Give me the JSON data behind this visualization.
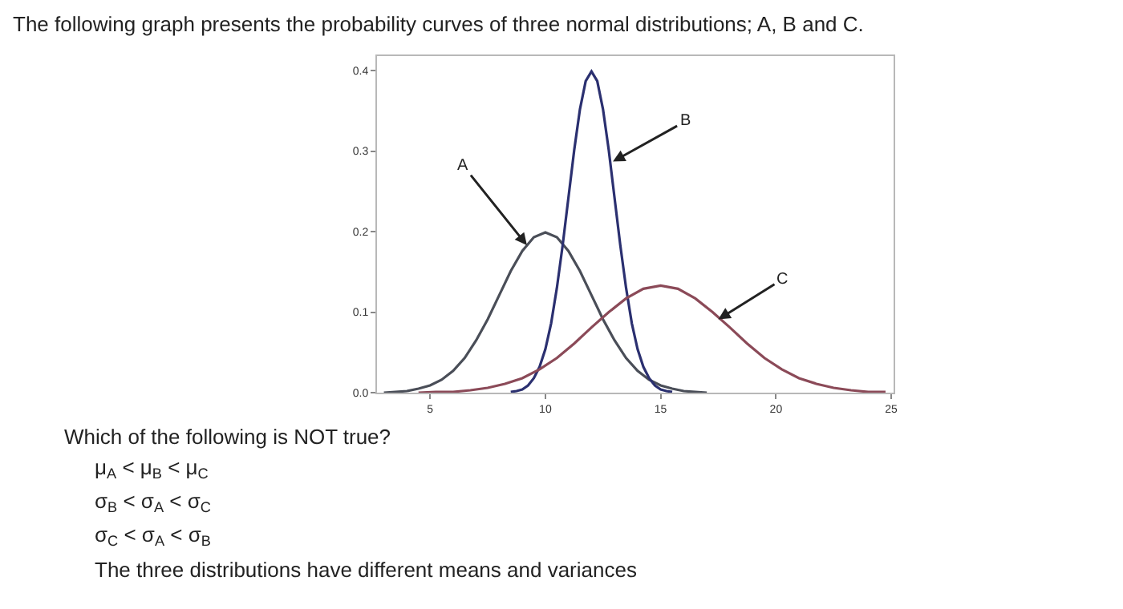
{
  "chart_data": {
    "type": "line",
    "title": "The following graph presents the probability curves of three normal distributions; A, B and C.",
    "series": [
      {
        "color": "#4a4e58",
        "x": [
          3,
          3.5,
          4,
          4.5,
          5,
          5.5,
          6,
          6.5,
          7,
          7.5,
          8,
          8.5,
          9,
          9.5,
          10,
          10.5,
          11,
          11.5,
          12,
          12.5,
          13,
          13.5,
          14,
          14.5,
          15,
          15.5,
          16,
          16.5,
          17
        ],
        "values": [
          0.0,
          0.001,
          0.002,
          0.005,
          0.009,
          0.016,
          0.027,
          0.043,
          0.065,
          0.091,
          0.121,
          0.151,
          0.176,
          0.193,
          0.199,
          0.193,
          0.176,
          0.151,
          0.121,
          0.091,
          0.065,
          0.043,
          0.027,
          0.016,
          0.009,
          0.005,
          0.002,
          0.001,
          0.0
        ]
      },
      {
        "color": "#2b3070",
        "x": [
          8.5,
          8.75,
          9,
          9.25,
          9.5,
          9.75,
          10,
          10.25,
          10.5,
          10.75,
          11,
          11.25,
          11.5,
          11.75,
          12,
          12.25,
          12.5,
          12.75,
          13,
          13.25,
          13.5,
          13.75,
          14,
          14.25,
          14.5,
          14.75,
          15,
          15.25,
          15.5
        ],
        "values": [
          0.001,
          0.002,
          0.004,
          0.009,
          0.018,
          0.032,
          0.054,
          0.086,
          0.13,
          0.183,
          0.242,
          0.301,
          0.352,
          0.387,
          0.399,
          0.387,
          0.352,
          0.301,
          0.242,
          0.183,
          0.13,
          0.086,
          0.054,
          0.032,
          0.018,
          0.009,
          0.004,
          0.002,
          0.001
        ]
      },
      {
        "color": "#8b4a58",
        "x": [
          4.5,
          5.25,
          6,
          6.75,
          7.5,
          8.25,
          9,
          9.75,
          10.5,
          11.25,
          12,
          12.75,
          13.5,
          14.25,
          15,
          15.75,
          16.5,
          17.25,
          18,
          18.75,
          19.5,
          20.25,
          21,
          21.75,
          22.5,
          23.25,
          24,
          24.75
        ],
        "values": [
          0.0,
          0.001,
          0.001,
          0.003,
          0.006,
          0.011,
          0.018,
          0.029,
          0.043,
          0.061,
          0.081,
          0.1,
          0.117,
          0.129,
          0.133,
          0.129,
          0.117,
          0.1,
          0.081,
          0.061,
          0.043,
          0.029,
          0.018,
          0.011,
          0.006,
          0.003,
          0.001,
          0.001
        ]
      }
    ],
    "xlim": [
      2.7,
      25.1
    ],
    "xticks": [
      5,
      10,
      15,
      20,
      25
    ],
    "ylim": [
      0,
      0.418
    ],
    "yticks": [
      {
        "value": 0,
        "label": "0.0"
      },
      0.1,
      0.2,
      0.3,
      0.4
    ],
    "marker": "none",
    "line_style": "solid",
    "annotations": [
      {
        "text": "A",
        "x": 9.2,
        "y": 0.183
      },
      {
        "text": "B",
        "x": 12.93,
        "y": 0.287
      },
      {
        "text": "C",
        "x": 17.5,
        "y": 0.091
      },
      "Which of the following is NOT true?",
      "μ$_{A}$ < μ$_{B}$ < μ$_{C}$",
      "σ$_{B}$ < σ$_{A}$ < σ$_{C}$",
      "σ$_{C}$ < σ$_{A}$ < σ$_{B}$",
      "The three distributions have different means and variances"
    ]
  }
}
